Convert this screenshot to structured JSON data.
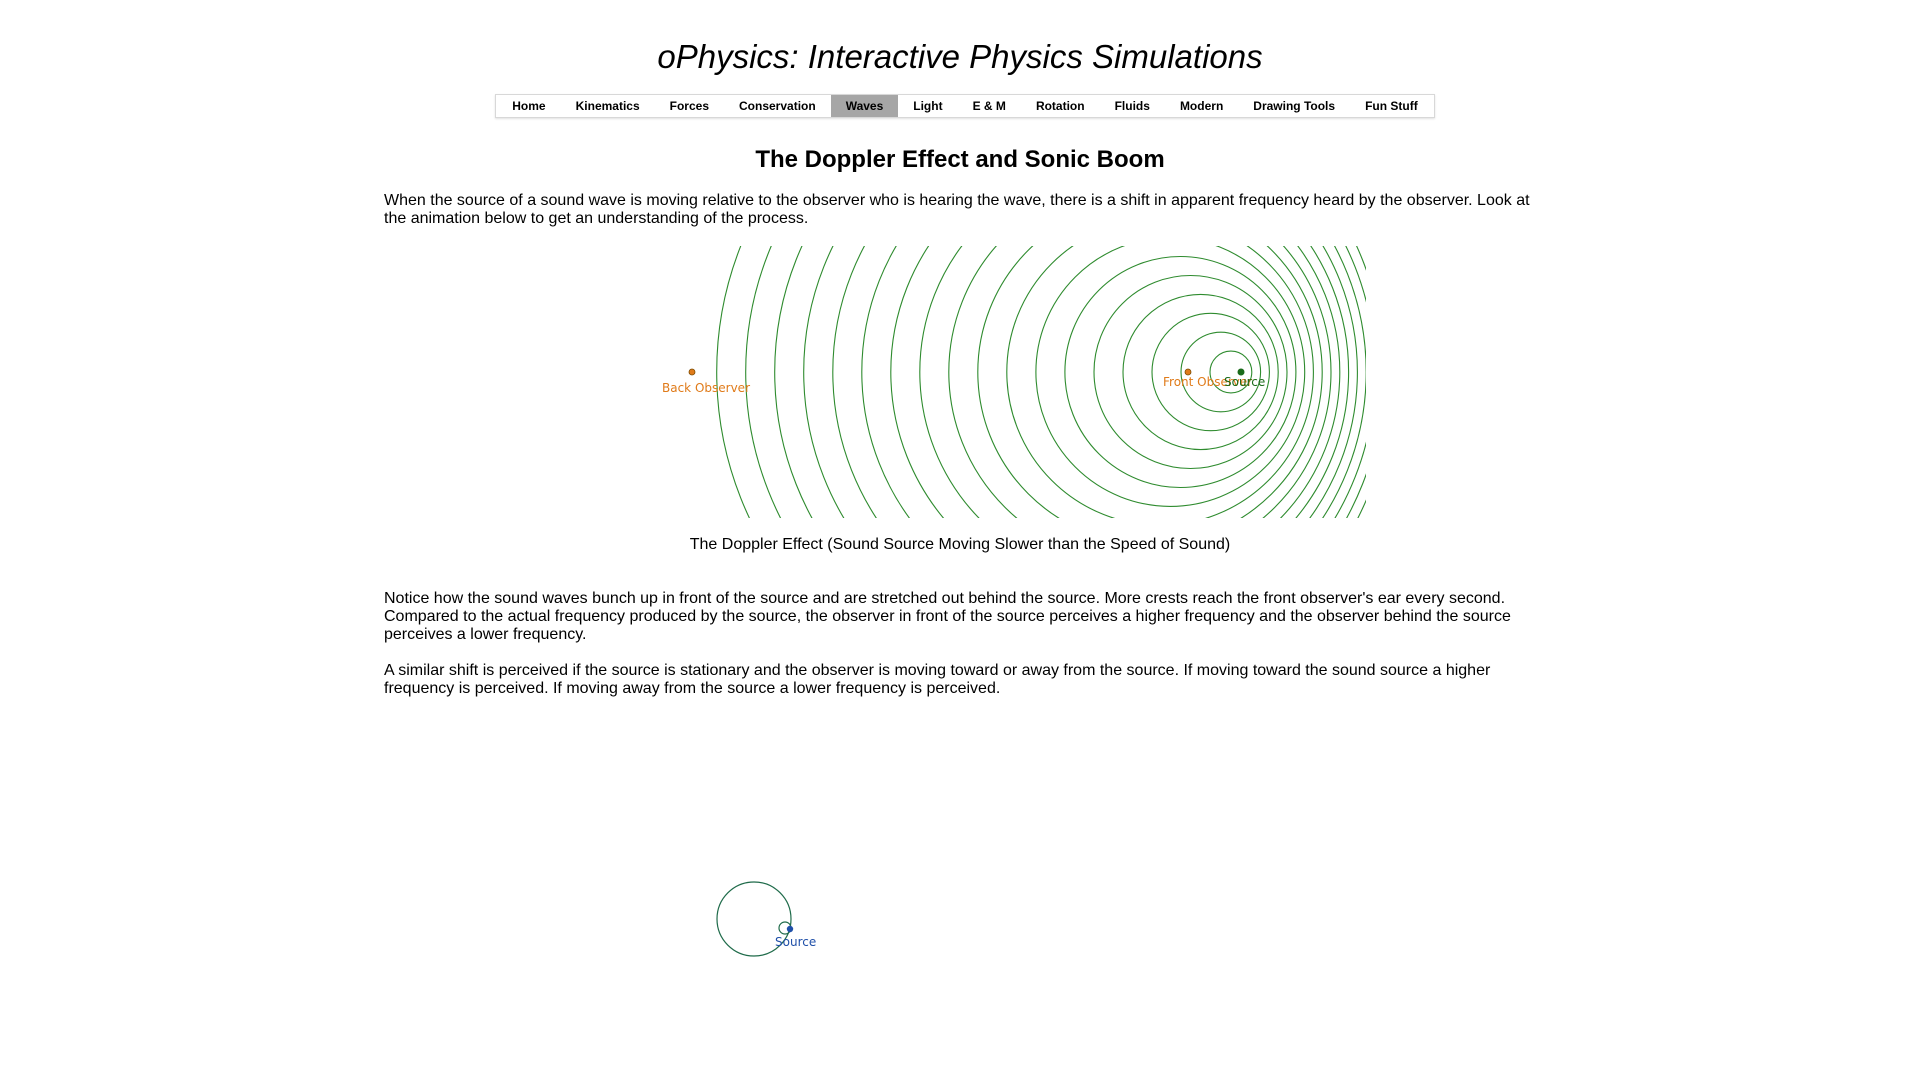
{
  "site": {
    "title": "oPhysics: Interactive Physics Simulations"
  },
  "nav": {
    "items": [
      {
        "label": "Home"
      },
      {
        "label": "Kinematics"
      },
      {
        "label": "Forces"
      },
      {
        "label": "Conservation"
      },
      {
        "label": "Waves",
        "active": true
      },
      {
        "label": "Light"
      },
      {
        "label": "E & M"
      },
      {
        "label": "Rotation"
      },
      {
        "label": "Fluids"
      },
      {
        "label": "Modern"
      },
      {
        "label": "Drawing Tools"
      },
      {
        "label": "Fun Stuff"
      }
    ]
  },
  "page": {
    "heading": "The Doppler Effect and Sonic Boom",
    "intro": "When the source of a sound wave is moving relative to the observer who is hearing the wave, there is a shift in apparent frequency heard by the observer. Look at the animation below to get an understanding of the process.",
    "caption": "The Doppler Effect (Sound Source Moving Slower than the Speed of Sound)",
    "para2": "Notice how the sound waves bunch up in front of the source and are stretched out behind the source. More crests reach the front observer's ear every second. Compared to the actual frequency produced by the source, the observer in front of the source perceives a higher frequency and the observer behind the source perceives a lower frequency.",
    "para3": "A similar shift is perceived if the source is stationary and the observer is moving toward or away from the source. If moving toward the sound source a higher frequency is perceived. If moving away from the source a lower frequency is perceived."
  },
  "simulation1": {
    "back_observer_label": "Back Observer",
    "front_observer_label": "Front Observer",
    "source_label": "Source",
    "wave_color": "#2e8b2e",
    "observer_color": "#e07b1a",
    "source_color": "#1a6b1a"
  },
  "simulation2": {
    "source_label": "Source",
    "wave_color": "#1f6b4a",
    "source_color": "#1f4fa8"
  }
}
